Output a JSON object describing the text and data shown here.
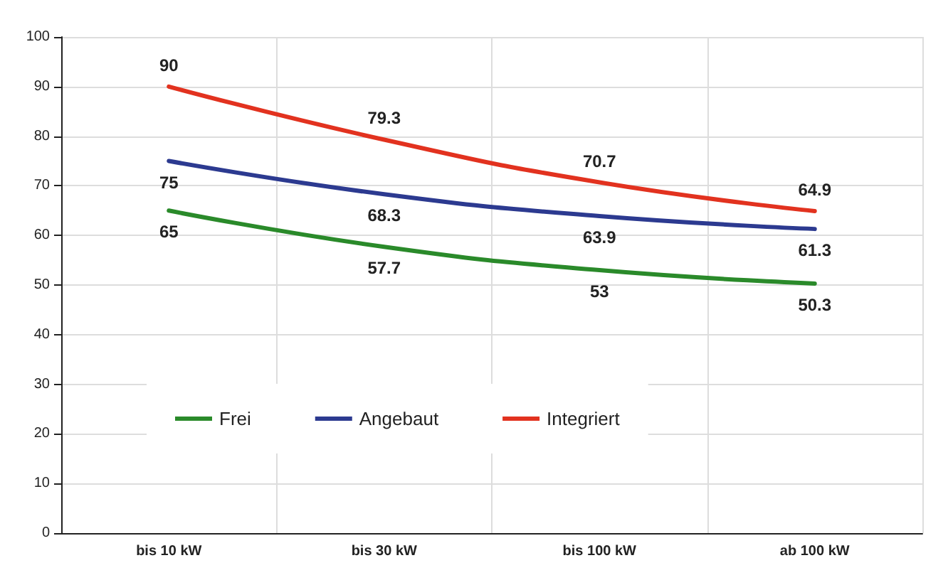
{
  "chart_data": {
    "type": "line",
    "categories": [
      "bis 10 kW",
      "bis 30 kW",
      "bis 100 kW",
      "ab 100 kW"
    ],
    "series": [
      {
        "name": "Frei",
        "color": "#2a8a2a",
        "values": [
          65,
          57.7,
          53,
          50.3
        ]
      },
      {
        "name": "Angebaut",
        "color": "#2c3a90",
        "values": [
          75,
          68.3,
          63.9,
          61.3
        ]
      },
      {
        "name": "Integriert",
        "color": "#e2321f",
        "values": [
          90,
          79.3,
          70.7,
          64.9
        ]
      }
    ],
    "ylim": [
      0,
      100
    ],
    "yticks": [
      0,
      10,
      20,
      30,
      40,
      50,
      60,
      70,
      80,
      90,
      100
    ],
    "grid": true,
    "legend": "left",
    "data_labels": true,
    "marker": "none",
    "line_style": "solid"
  }
}
